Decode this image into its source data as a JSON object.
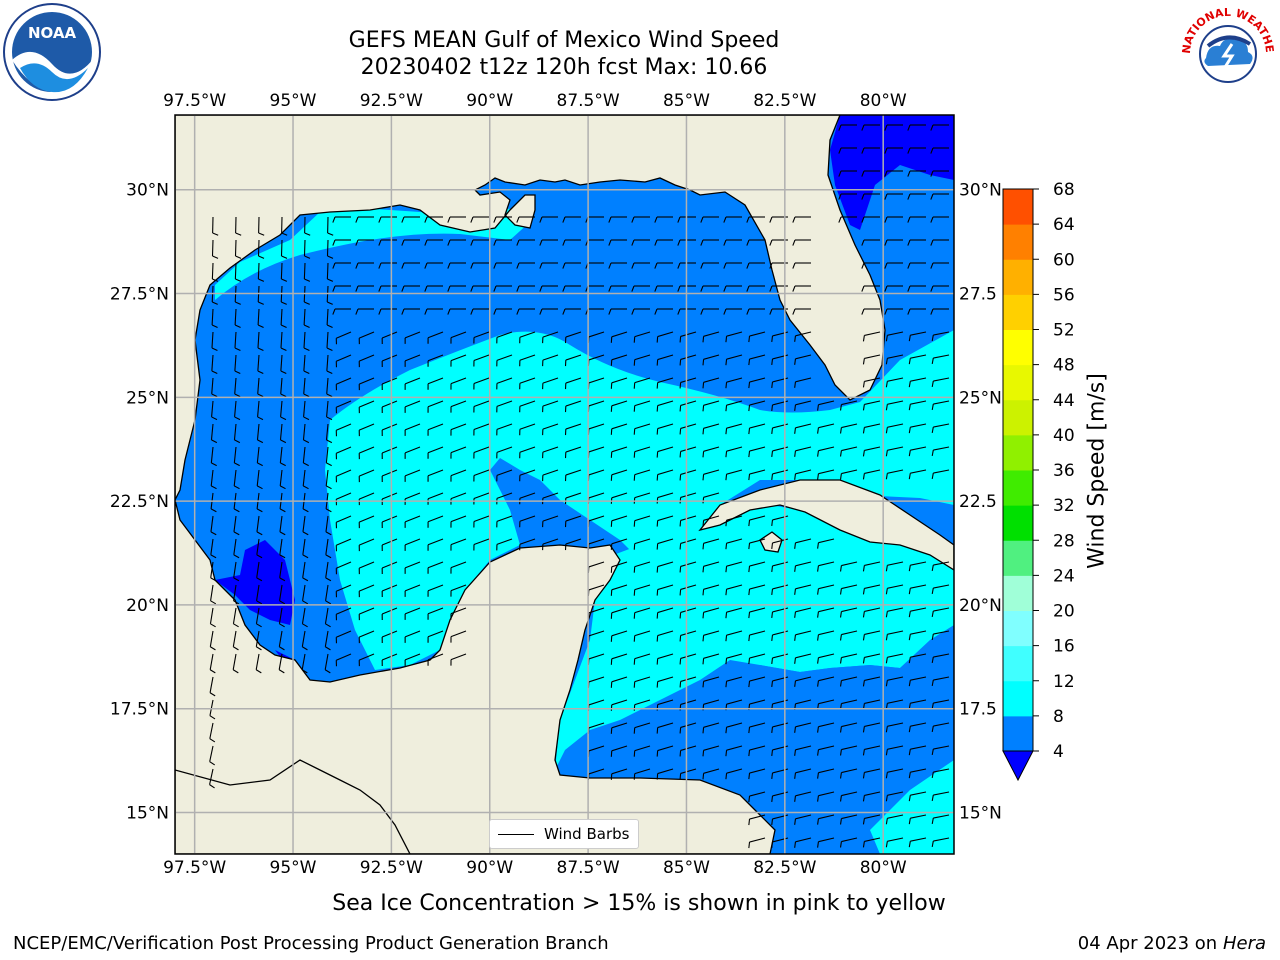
{
  "title": {
    "line1": "GEFS MEAN Gulf of Mexico Wind Speed",
    "line2": "20230402 t12z 120h fcst   Max: 10.66"
  },
  "map": {
    "lon_ticks": [
      "97.5°W",
      "95°W",
      "92.5°W",
      "90°W",
      "87.5°W",
      "85°W",
      "82.5°W",
      "80°W"
    ],
    "lon_values": [
      -97.5,
      -95,
      -92.5,
      -90,
      -87.5,
      -85,
      -82.5,
      -80
    ],
    "lat_ticks_left": [
      "30°N",
      "27.5°N",
      "25°N",
      "22.5°N",
      "20°N",
      "17.5°N",
      "15°N"
    ],
    "lat_ticks_right": [
      "30°N",
      "27.5",
      "25°N",
      "22.5",
      "20°N",
      "17.5",
      "15°N"
    ],
    "lat_values": [
      30,
      27.5,
      25,
      22.5,
      20,
      17.5,
      15
    ],
    "lon_range": [
      -98,
      -78.2
    ],
    "lat_range": [
      14,
      31.8
    ],
    "grid": true,
    "land_color": "#efeedd",
    "legend_label": "Wind Barbs"
  },
  "colorbar": {
    "label": "Wind Speed [m/s]",
    "ticks": [
      "68",
      "64",
      "60",
      "56",
      "52",
      "48",
      "44",
      "40",
      "36",
      "32",
      "28",
      "24",
      "20",
      "16",
      "12",
      "8",
      "4"
    ],
    "levels": [
      4,
      8,
      12,
      16,
      20,
      24,
      28,
      32,
      36,
      40,
      44,
      48,
      52,
      56,
      60,
      64,
      68
    ],
    "colors": [
      "#0080ff",
      "#00ffff",
      "#40ffff",
      "#80ffff",
      "#a0ffd8",
      "#50f080",
      "#00e000",
      "#40ec00",
      "#90f000",
      "#ccf200",
      "#e8f800",
      "#ffff00",
      "#ffd000",
      "#ffb000",
      "#ff8000",
      "#ff5000",
      "#ff2000",
      "#ff0000"
    ],
    "under_color": "#0000ff"
  },
  "note": "Sea Ice Concentration > 15% is shown in pink to yellow",
  "footer": {
    "left": "NCEP/EMC/Verification Post Processing Product Generation Branch",
    "date": "04 Apr 2023 on",
    "machine": "Hera"
  },
  "logos": {
    "noaa": "NOAA",
    "nws_top": "NATIONAL WEATHER SERVICE"
  }
}
